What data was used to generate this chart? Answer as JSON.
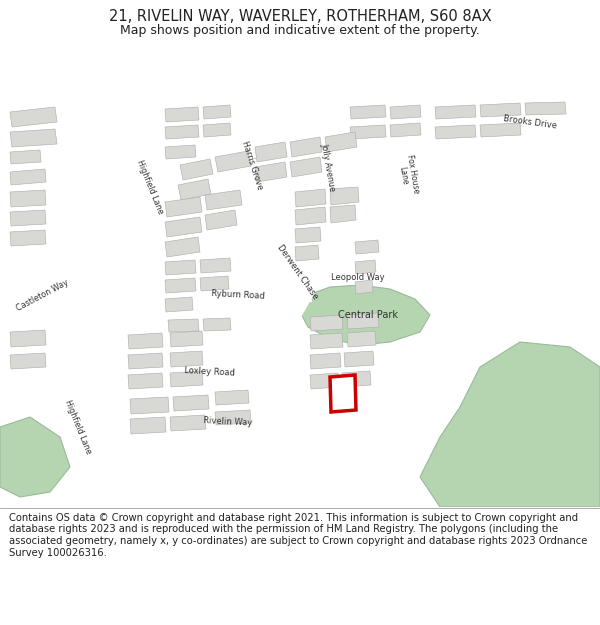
{
  "title": "21, RIVELIN WAY, WAVERLEY, ROTHERHAM, S60 8AX",
  "subtitle": "Map shows position and indicative extent of the property.",
  "copyright": "Contains OS data © Crown copyright and database right 2021. This information is subject to Crown copyright and database rights 2023 and is reproduced with the permission of HM Land Registry. The polygons (including the associated geometry, namely x, y co-ordinates) are subject to Crown copyright and database rights 2023 Ordnance Survey 100026316.",
  "map_bg": "#f2f2f0",
  "building_color": "#d8d8d5",
  "building_edge": "#aaaaaa",
  "green_color": "#b5d4b0",
  "green_edge": "#9aba99",
  "highlight_color": "#cc0000",
  "road_color": "#ffffff",
  "title_fontsize": 10.5,
  "subtitle_fontsize": 9,
  "copyright_fontsize": 7.2
}
